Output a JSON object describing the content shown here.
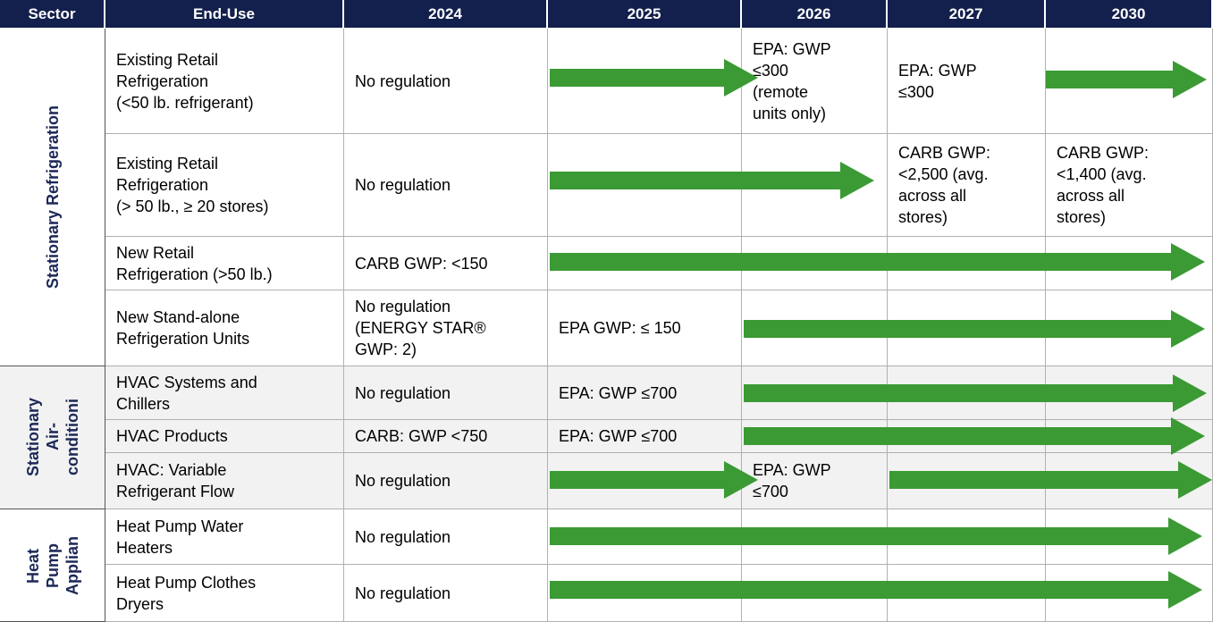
{
  "header": [
    "Sector",
    "End-Use",
    "2024",
    "2025",
    "2026",
    "2027",
    "2030"
  ],
  "groups": [
    {
      "sector": "Stationary Refrigeration",
      "rows": [
        {
          "end_use": "Existing Retail\nRefrigeration\n(<50 lb. refrigerant)",
          "cells": [
            "No regulation",
            null,
            "EPA: GWP\n≤300\n(remote\nunits only)",
            "EPA: GWP\n≤300",
            null
          ]
        },
        {
          "end_use": "Existing Retail\nRefrigeration\n(> 50 lb., ≥ 20 stores)",
          "cells": [
            "No regulation",
            null,
            null,
            "CARB GWP:\n<2,500 (avg.\nacross all\nstores)",
            "CARB GWP:\n<1,400 (avg.\nacross all\nstores)"
          ]
        },
        {
          "end_use": "New Retail\nRefrigeration (>50 lb.)",
          "cells": [
            "CARB GWP: <150",
            null,
            null,
            null,
            null
          ]
        },
        {
          "end_use": "New Stand-alone\nRefrigeration Units",
          "cells": [
            "No regulation\n(ENERGY STAR®\nGWP: 2)",
            "EPA GWP: ≤ 150",
            null,
            null,
            null
          ]
        }
      ]
    },
    {
      "sector": "Stationary\nAir-\nconditioni",
      "rows": [
        {
          "end_use": "HVAC Systems and\nChillers",
          "cells": [
            "No regulation",
            "EPA: GWP ≤700",
            null,
            null,
            null
          ]
        },
        {
          "end_use": "HVAC Products",
          "cells": [
            "CARB: GWP <750",
            "EPA: GWP ≤700",
            null,
            null,
            null
          ]
        },
        {
          "end_use": "HVAC: Variable\nRefrigerant Flow",
          "cells": [
            "No regulation",
            null,
            "EPA: GWP\n≤700",
            null,
            null
          ]
        }
      ]
    },
    {
      "sector": "Heat\nPump\nApplian",
      "rows": [
        {
          "end_use": "Heat Pump Water\nHeaters",
          "cells": [
            "No regulation",
            null,
            null,
            null,
            null
          ]
        },
        {
          "end_use": "Heat Pump Clothes\nDryers",
          "cells": [
            "No regulation",
            null,
            null,
            null,
            null
          ]
        }
      ]
    }
  ]
}
